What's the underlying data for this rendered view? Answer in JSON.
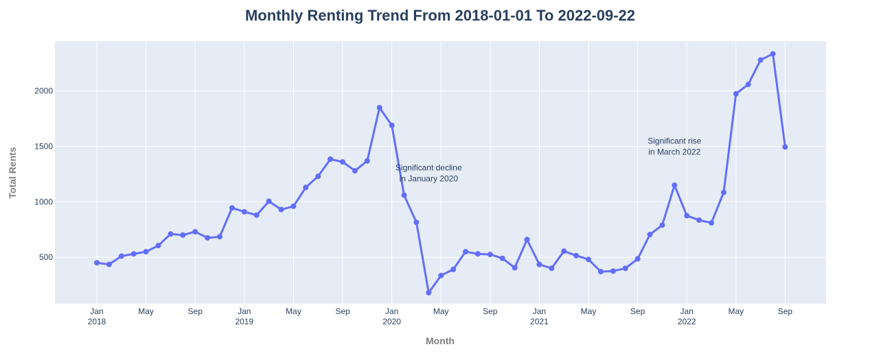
{
  "chart_data": {
    "type": "line",
    "title": "Monthly Renting Trend From 2018-01-01 To 2022-09-22",
    "xlabel": "Month",
    "ylabel": "Total Rents",
    "x_start": "2018-01",
    "x_ticks": [
      {
        "month": "2018-01",
        "label": "Jan",
        "year": "2018"
      },
      {
        "month": "2018-05",
        "label": "May",
        "year": ""
      },
      {
        "month": "2018-09",
        "label": "Sep",
        "year": ""
      },
      {
        "month": "2019-01",
        "label": "Jan",
        "year": "2019"
      },
      {
        "month": "2019-05",
        "label": "May",
        "year": ""
      },
      {
        "month": "2019-09",
        "label": "Sep",
        "year": ""
      },
      {
        "month": "2020-01",
        "label": "Jan",
        "year": "2020"
      },
      {
        "month": "2020-05",
        "label": "May",
        "year": ""
      },
      {
        "month": "2020-09",
        "label": "Sep",
        "year": ""
      },
      {
        "month": "2021-01",
        "label": "Jan",
        "year": "2021"
      },
      {
        "month": "2021-05",
        "label": "May",
        "year": ""
      },
      {
        "month": "2021-09",
        "label": "Sep",
        "year": ""
      },
      {
        "month": "2022-01",
        "label": "Jan",
        "year": "2022"
      },
      {
        "month": "2022-05",
        "label": "May",
        "year": ""
      },
      {
        "month": "2022-09",
        "label": "Sep",
        "year": ""
      }
    ],
    "y_ticks": [
      500,
      1000,
      1500,
      2000
    ],
    "ylim": [
      80,
      2450
    ],
    "grid": true,
    "series": [
      {
        "color": "#636efa",
        "values": [
          450,
          435,
          510,
          530,
          550,
          605,
          710,
          700,
          730,
          675,
          685,
          945,
          910,
          880,
          1005,
          930,
          960,
          1130,
          1230,
          1385,
          1360,
          1280,
          1370,
          1850,
          1690,
          1060,
          815,
          180,
          335,
          390,
          550,
          530,
          525,
          490,
          405,
          660,
          435,
          400,
          555,
          515,
          480,
          370,
          375,
          400,
          485,
          705,
          790,
          1150,
          875,
          835,
          810,
          1085,
          1975,
          2060,
          2280,
          2335,
          1495
        ]
      }
    ],
    "annotations": [
      {
        "month": "2020-04",
        "y": 1260,
        "lines": [
          "Significant decline",
          "in January 2020"
        ]
      },
      {
        "month": "2021-12",
        "y": 1500,
        "lines": [
          "Significant rise",
          "in March 2022"
        ]
      }
    ]
  }
}
